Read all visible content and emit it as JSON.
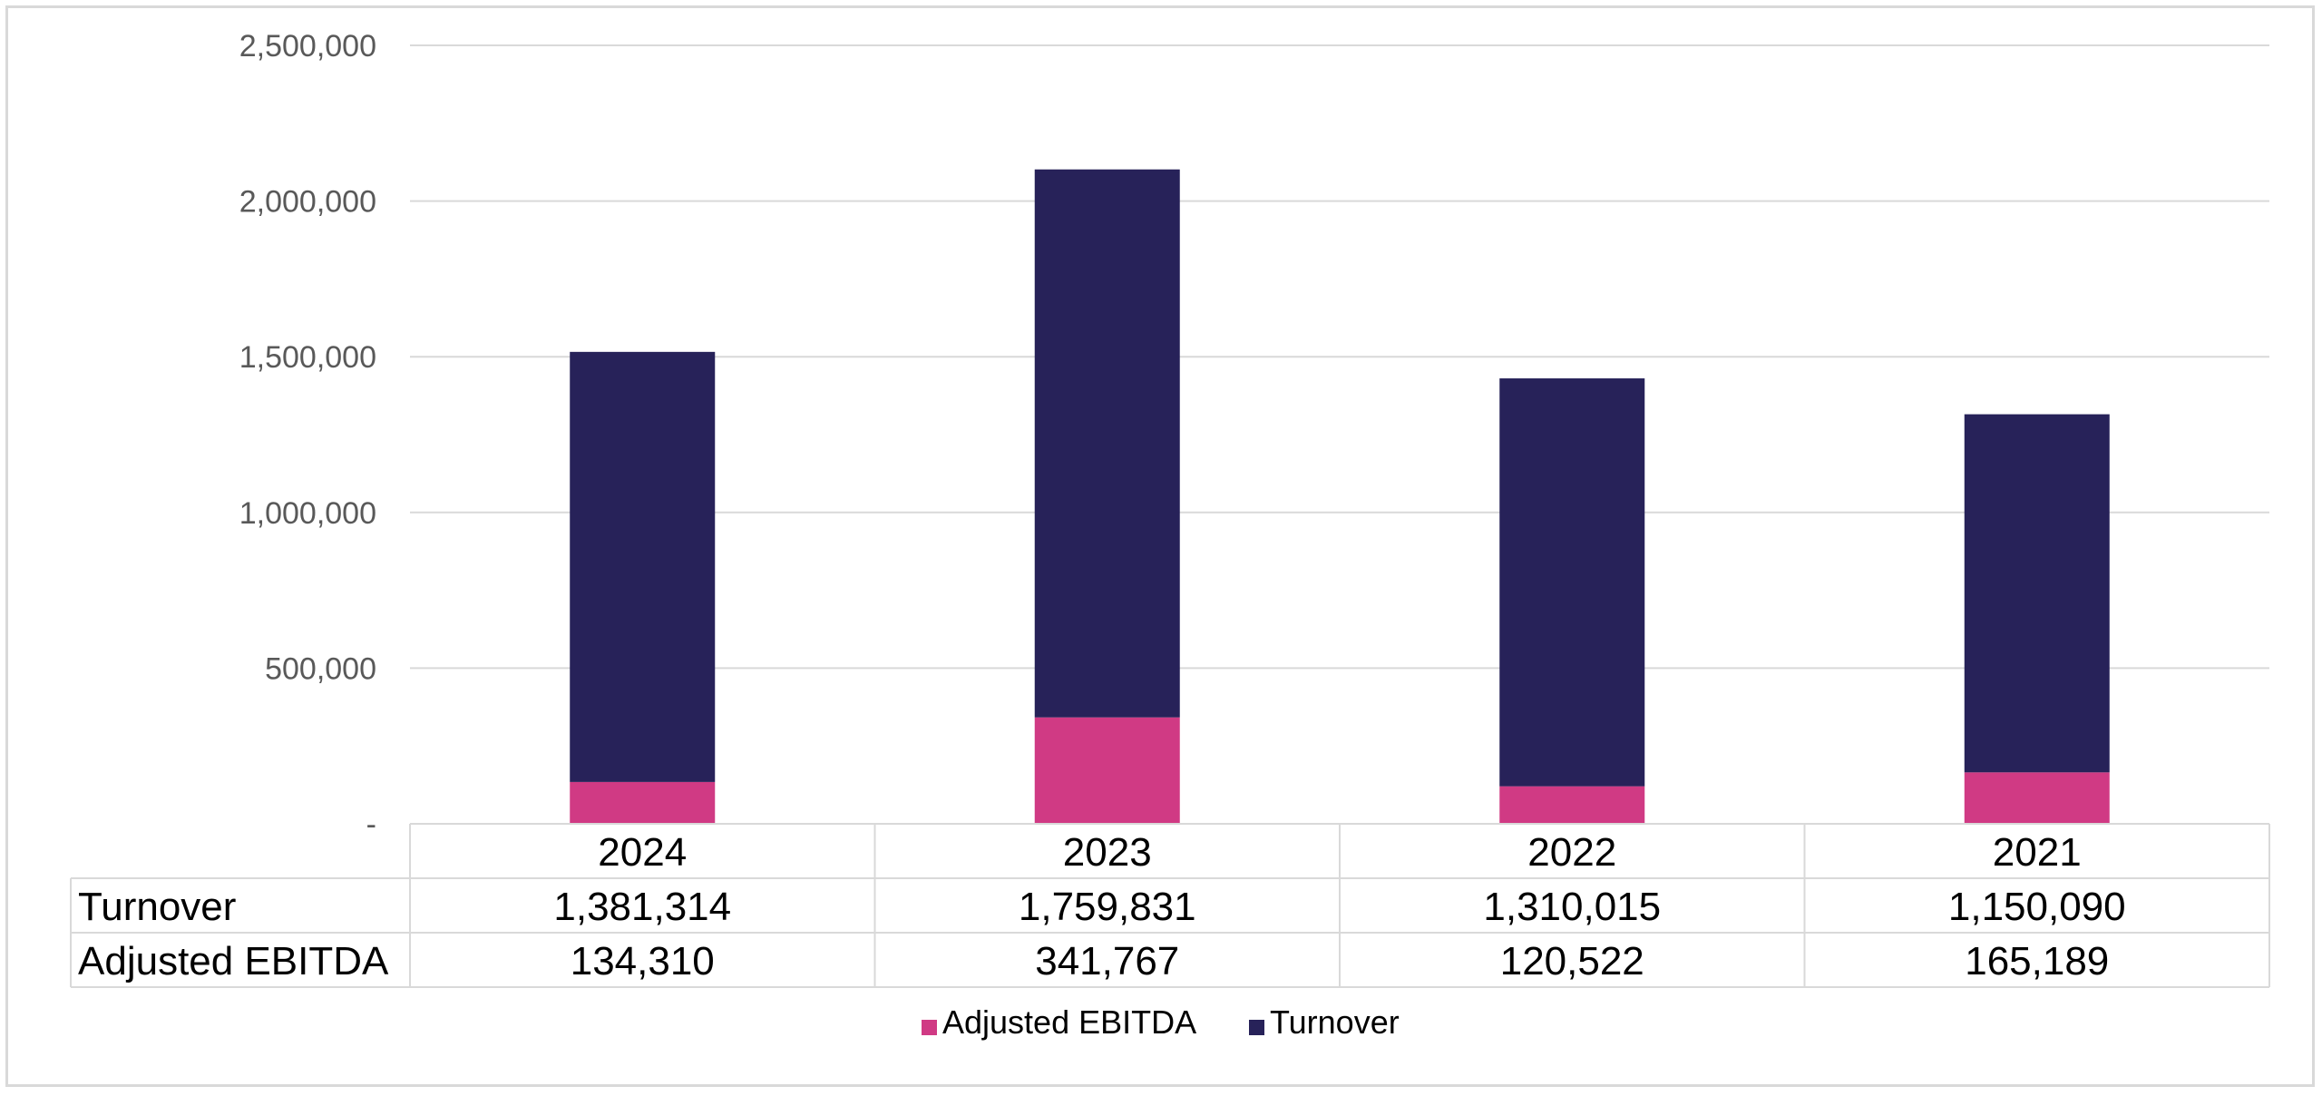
{
  "chart_data": {
    "type": "bar",
    "stacked": true,
    "categories": [
      "2024",
      "2023",
      "2022",
      "2021"
    ],
    "series": [
      {
        "name": "Adjusted EBITDA",
        "color": "#d03a84",
        "values": [
          134310,
          341767,
          120522,
          165189
        ],
        "labels": [
          "134,310",
          "341,767",
          "120,522",
          "165,189"
        ]
      },
      {
        "name": "Turnover",
        "color": "#272259",
        "values": [
          1381314,
          1759831,
          1310015,
          1150090
        ],
        "labels": [
          "1,381,314",
          "1,759,831",
          "1,310,015",
          "1,150,090"
        ]
      }
    ],
    "ylim": [
      0,
      2500000
    ],
    "yticks": [
      0,
      500000,
      1000000,
      1500000,
      2000000,
      2500000
    ],
    "ytick_labels": [
      "-",
      "500,000",
      "1,000,000",
      "1,500,000",
      "2,000,000",
      "2,500,000"
    ],
    "grid": true,
    "legend": "bottom",
    "data_table": {
      "rows": [
        {
          "label": "Turnover",
          "series_index": 1
        },
        {
          "label": "Adjusted EBITDA",
          "series_index": 0
        }
      ]
    },
    "colors": {
      "grid": "#d9d9d9",
      "axis_text": "#595959"
    }
  }
}
